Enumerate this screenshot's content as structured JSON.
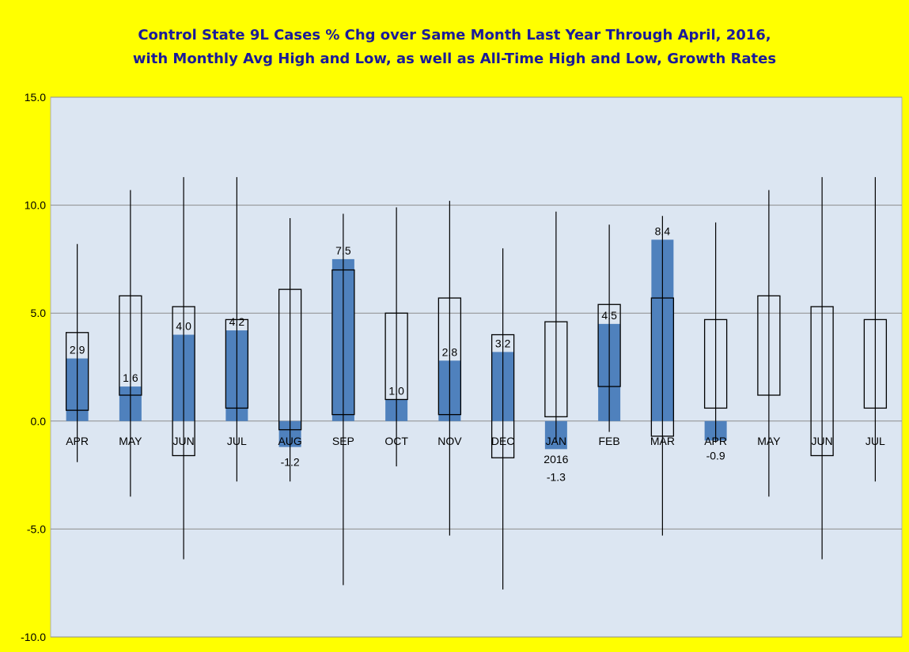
{
  "chart_data": {
    "type": "bar",
    "title_line1": "Control State 9L Cases % Chg over Same Month Last Year Through April, 2016,",
    "title_line2": "with Monthly Avg High and Low, as well as All-Time High and Low,  Growth Rates",
    "ylim": [
      -10,
      15
    ],
    "y_ticks": [
      15,
      10,
      5,
      0,
      -5,
      -10
    ],
    "y_tick_labels": [
      "15.0",
      "10.0",
      "5.0",
      "0.0",
      "-5.0",
      "-10.0"
    ],
    "grid": true,
    "categories": [
      "APR",
      "MAY",
      "JUN",
      "JUL",
      "AUG",
      "SEP",
      "OCT",
      "NOV",
      "DEC",
      "JAN",
      "FEB",
      "MAR",
      "APR",
      "MAY",
      "JUN",
      "JUL"
    ],
    "year_label": {
      "category_index": 9,
      "text": "2016"
    },
    "series": [
      {
        "kind": "bar",
        "values": [
          2.9,
          1.6,
          4.0,
          4.2,
          -1.2,
          7.5,
          1.0,
          2.8,
          3.2,
          -1.3,
          4.5,
          8.4,
          -0.9,
          null,
          null,
          null
        ],
        "data_labels": [
          "2.9",
          "1.6",
          "4.0",
          "4.2",
          "-1.2",
          "7.5",
          "1.0",
          "2.8",
          "3.2",
          "-1.3",
          "4.5",
          "8.4",
          "-0.9",
          "",
          "",
          ""
        ]
      },
      {
        "kind": "avg_range_box",
        "high": [
          4.1,
          5.8,
          5.3,
          4.7,
          6.1,
          7.0,
          5.0,
          5.7,
          4.0,
          4.6,
          5.4,
          5.7,
          4.7,
          5.8,
          5.3,
          4.7
        ],
        "low": [
          0.5,
          1.2,
          -1.6,
          0.6,
          -0.4,
          0.3,
          1.0,
          0.3,
          -1.7,
          0.2,
          1.6,
          -0.7,
          0.6,
          1.2,
          -1.6,
          0.6
        ]
      },
      {
        "kind": "all_time_range_line",
        "high": [
          8.2,
          10.7,
          11.3,
          11.3,
          9.4,
          9.6,
          9.9,
          10.2,
          8.0,
          9.7,
          9.1,
          9.5,
          9.2,
          10.7,
          11.3,
          11.3
        ],
        "low": [
          -1.9,
          -3.5,
          -6.4,
          -2.8,
          -2.8,
          -7.6,
          -2.1,
          -5.3,
          -7.8,
          -1.0,
          -0.5,
          -5.3,
          -1.0,
          -3.5,
          -6.4,
          -2.8
        ]
      }
    ],
    "colors": {
      "background": "#ffff00",
      "plot_area": "#dce6f2",
      "bar": "#4f81bd",
      "gridline": "#8c8c8c",
      "title": "#1a1a99",
      "text": "#000000"
    }
  }
}
